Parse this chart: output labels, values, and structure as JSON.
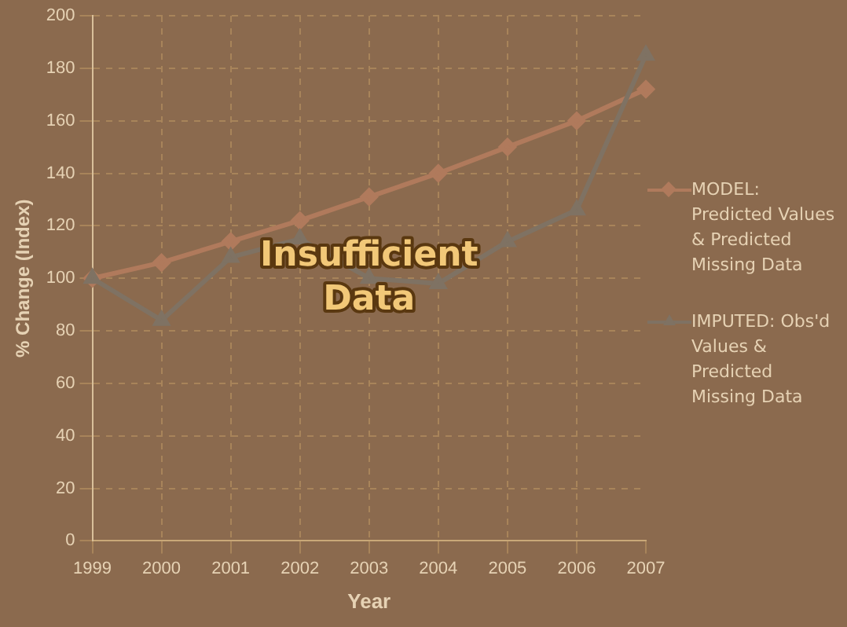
{
  "chart_data": {
    "type": "line",
    "xlabel": "Year",
    "ylabel": "% Change (Index)",
    "categories": [
      "1999",
      "2000",
      "2001",
      "2002",
      "2003",
      "2004",
      "2005",
      "2006",
      "2007"
    ],
    "series": [
      {
        "name": "MODEL: Predicted Values & Predicted Missing Data",
        "color": "#b07a5c",
        "marker": "diamond",
        "values": [
          100,
          106,
          114,
          122,
          131,
          140,
          150,
          160,
          172
        ]
      },
      {
        "name": "IMPUTED: Obs'd Values & Predicted Missing Data",
        "color": "#7f7263",
        "marker": "triangle",
        "values": [
          100,
          84,
          108,
          115,
          100,
          98,
          114,
          126,
          185
        ]
      }
    ],
    "ylim": [
      0,
      200
    ],
    "yticks": [
      0,
      20,
      40,
      60,
      80,
      100,
      120,
      140,
      160,
      180,
      200
    ],
    "grid": true,
    "legend": "right",
    "line_style": "solid",
    "annotations": [
      "Insufficient Data"
    ]
  }
}
